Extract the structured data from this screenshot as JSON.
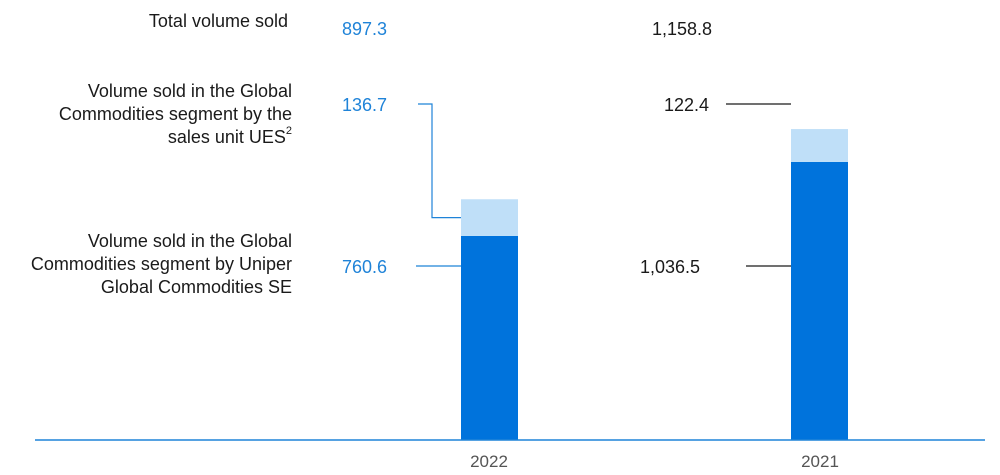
{
  "row_labels": {
    "total": "Total volume sold",
    "ues": "Volume sold in the Global Commodities segment by the sales unit UES",
    "ues_footnote": "2",
    "ugc": "Volume sold in the Global Commodities segment by Uniper Global Commodities SE"
  },
  "chart_data": {
    "type": "bar",
    "stacked": true,
    "categories": [
      "2022",
      "2021"
    ],
    "totals": [
      "897.3",
      "1,158.8"
    ],
    "series": [
      {
        "name": "Volume sold in the Global Commodities segment by Uniper Global Commodities SE",
        "values": [
          760.6,
          1036.5
        ],
        "labels": [
          "760.6",
          "1,036.5"
        ],
        "color": "#0073dc"
      },
      {
        "name": "Volume sold in the Global Commodities segment by the sales unit UES",
        "values": [
          136.7,
          122.4
        ],
        "labels": [
          "136.7",
          "122.4"
        ],
        "color": "#bfdff8"
      }
    ],
    "value_label_colors": [
      "#1f83d8",
      "#1a1a1a"
    ],
    "axis_color": "#1f83d8",
    "grid": false
  }
}
